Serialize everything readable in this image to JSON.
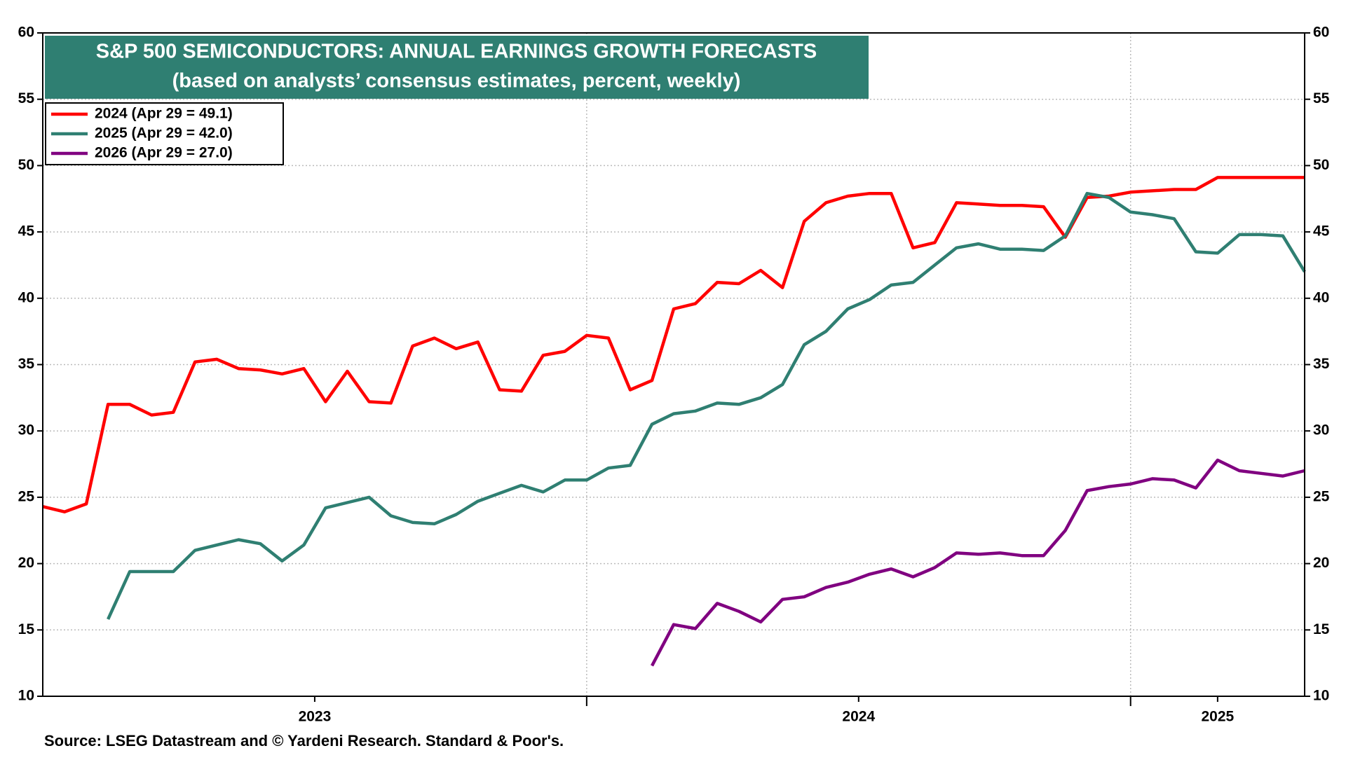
{
  "chart_data": {
    "type": "line",
    "title": "S&P 500 SEMICONDUCTORS: ANNUAL EARNINGS GROWTH FORECASTS",
    "subtitle": "(based on analysts’ consensus estimates, percent, weekly)",
    "source": "Source: LSEG Datastream and © Yardeni Research. Standard & Poor's.",
    "title_color": "#2f7f72",
    "x": [
      2023,
      2023.04,
      2023.08,
      2023.12,
      2023.16,
      2023.2,
      2023.24,
      2023.28,
      2023.32,
      2023.36,
      2023.4,
      2023.44,
      2023.48,
      2023.52,
      2023.56,
      2023.6,
      2023.64,
      2023.68,
      2023.72,
      2023.76,
      2023.8,
      2023.84,
      2023.88,
      2023.92,
      2023.96,
      2024,
      2024.04,
      2024.08,
      2024.12,
      2024.16,
      2024.2,
      2024.24,
      2024.28,
      2024.32,
      2024.36,
      2024.4,
      2024.44,
      2024.48,
      2024.52,
      2024.56,
      2024.6,
      2024.64,
      2024.68,
      2024.72,
      2024.76,
      2024.8,
      2024.84,
      2024.88,
      2024.92,
      2024.96,
      2025,
      2025.04,
      2025.08,
      2025.12,
      2025.16,
      2025.2,
      2025.24,
      2025.28,
      2025.32
    ],
    "xlim": [
      2023,
      2025.32
    ],
    "xticks": [
      {
        "value": 2023.5,
        "label": "2023"
      },
      {
        "value": 2024.5,
        "label": "2024"
      },
      {
        "value": 2025.16,
        "label": "2025"
      }
    ],
    "xgrid": [
      2024,
      2025
    ],
    "ylim": [
      10,
      60
    ],
    "yticks": [
      10,
      15,
      20,
      25,
      30,
      35,
      40,
      45,
      50,
      55,
      60
    ],
    "y2lim": [
      10,
      60
    ],
    "y2ticks": [
      10,
      15,
      20,
      25,
      30,
      35,
      40,
      45,
      50,
      55,
      60
    ],
    "grid": true,
    "legend": "upper left",
    "series": [
      {
        "name": "2024 (Apr 29 = 49.1)",
        "color": "#ff0000",
        "values": [
          24.3,
          23.9,
          24.5,
          32,
          32,
          31.2,
          31.4,
          35.2,
          35.4,
          34.7,
          34.6,
          34.3,
          34.7,
          32.2,
          34.5,
          32.2,
          32.1,
          36.4,
          37,
          36.2,
          36.7,
          33.1,
          33,
          35.7,
          36,
          37.2,
          37,
          33.1,
          33.8,
          39.2,
          39.6,
          41.2,
          41.1,
          42.1,
          40.8,
          45.8,
          47.2,
          47.7,
          47.9,
          47.9,
          43.8,
          44.2,
          47.2,
          47.1,
          47,
          47,
          46.9,
          44.6,
          47.6,
          47.7,
          48,
          48.1,
          48.2,
          48.2,
          49.1,
          49.1,
          49.1,
          49.1,
          49.1
        ]
      },
      {
        "name": "2025 (Apr 29 = 42.0)",
        "color": "#2f7f72",
        "values": [
          null,
          null,
          null,
          15.8,
          19.4,
          19.4,
          19.4,
          21,
          21.4,
          21.8,
          21.5,
          20.2,
          21.4,
          24.2,
          24.6,
          25,
          23.6,
          23.1,
          23,
          23.7,
          24.7,
          25.3,
          25.9,
          25.4,
          26.3,
          26.3,
          27.2,
          27.4,
          30.5,
          31.3,
          31.5,
          32.1,
          32,
          32.5,
          33.5,
          36.5,
          37.5,
          39.2,
          39.9,
          41,
          41.2,
          42.5,
          43.8,
          44.1,
          43.7,
          43.7,
          43.6,
          44.7,
          47.9,
          47.6,
          46.5,
          46.3,
          46,
          43.5,
          43.4,
          44.8,
          44.8,
          44.7,
          42.0
        ]
      },
      {
        "name": "2026 (Apr 29 = 27.0)",
        "color": "#800080",
        "values": [
          null,
          null,
          null,
          null,
          null,
          null,
          null,
          null,
          null,
          null,
          null,
          null,
          null,
          null,
          null,
          null,
          null,
          null,
          null,
          null,
          null,
          null,
          null,
          null,
          null,
          null,
          null,
          null,
          12.3,
          15.4,
          15.1,
          17,
          16.4,
          15.6,
          17.3,
          17.5,
          18.2,
          18.6,
          19.2,
          19.6,
          19,
          19.7,
          20.8,
          20.7,
          20.8,
          20.6,
          20.6,
          22.5,
          25.5,
          25.8,
          26,
          26.4,
          26.3,
          25.7,
          27.8,
          27,
          26.8,
          26.6,
          27.0
        ]
      }
    ]
  }
}
